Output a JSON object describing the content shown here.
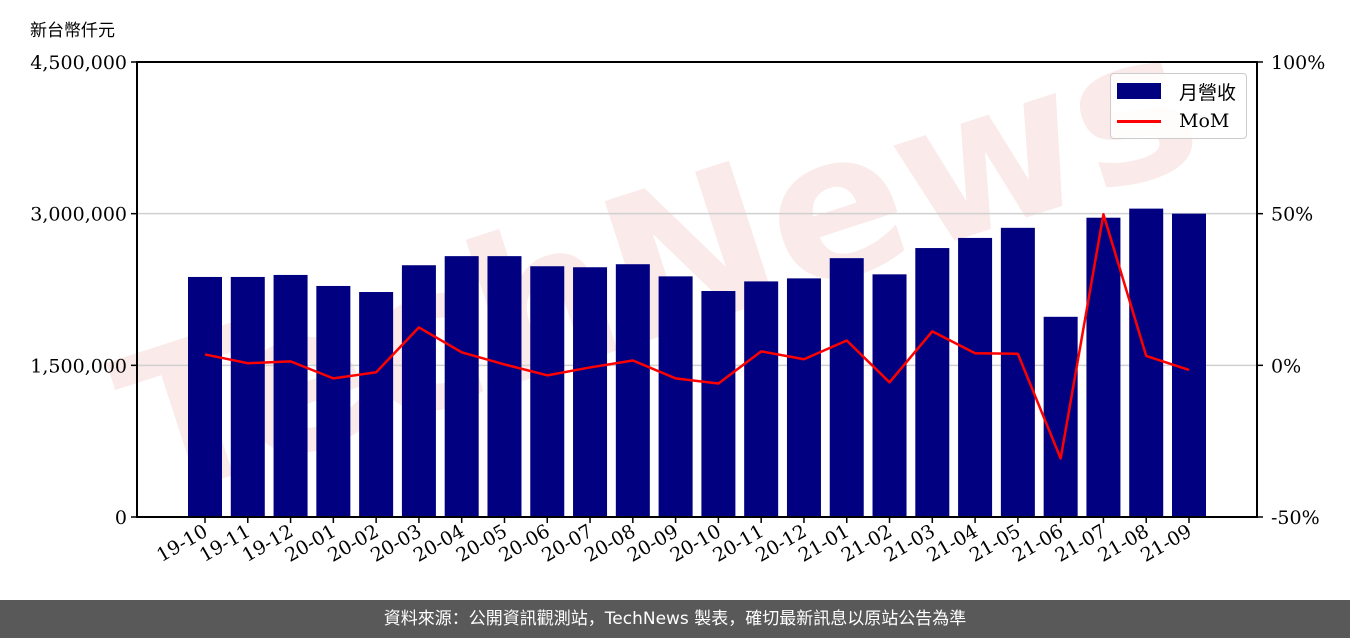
{
  "chart_data": {
    "type": "bar",
    "unit_label": "新台幣仟元",
    "watermark": "TechNews",
    "categories": [
      "19-10",
      "19-11",
      "19-12",
      "20-01",
      "20-02",
      "20-03",
      "20-04",
      "20-05",
      "20-06",
      "20-07",
      "20-08",
      "20-09",
      "20-10",
      "20-11",
      "20-12",
      "21-01",
      "21-02",
      "21-03",
      "21-04",
      "21-05",
      "21-06",
      "21-07",
      "21-08",
      "21-09"
    ],
    "series": [
      {
        "name": "月營收",
        "type": "bar",
        "axis": "left",
        "color": "#000080",
        "values": [
          2374000,
          2374000,
          2394000,
          2285000,
          2225000,
          2490000,
          2580000,
          2580000,
          2480000,
          2470000,
          2500000,
          2380000,
          2235000,
          2330000,
          2360000,
          2560000,
          2400000,
          2660000,
          2760000,
          2860000,
          1980000,
          2960000,
          3050000,
          3000000
        ]
      },
      {
        "name": "MoM",
        "type": "line",
        "axis": "right",
        "color": "#ff0000",
        "values": [
          3.6,
          0.7,
          1.3,
          -4.3,
          -2.3,
          12.5,
          4.3,
          0.3,
          -3.3,
          -0.7,
          1.6,
          -4.3,
          -6.0,
          4.6,
          2.0,
          8.2,
          -5.6,
          11.2,
          4.0,
          3.8,
          -30.7,
          49.8,
          3.1,
          -1.5
        ]
      }
    ],
    "left_axis": {
      "ylim": [
        0,
        4500000
      ],
      "ticks": [
        0,
        1500000,
        3000000,
        4500000
      ],
      "tick_labels": [
        "0",
        "1,500,000",
        "3,000,000",
        "4,500,000"
      ]
    },
    "right_axis": {
      "ylim": [
        -50,
        100
      ],
      "ticks": [
        -50,
        0,
        50,
        100
      ],
      "tick_labels": [
        "-50%",
        "0%",
        "50%",
        "100%"
      ]
    },
    "grid": "horizontal",
    "legend": "top-right"
  },
  "footer": "資料來源：公開資訊觀測站，TechNews 製表，確切最新訊息以原站公告為準"
}
